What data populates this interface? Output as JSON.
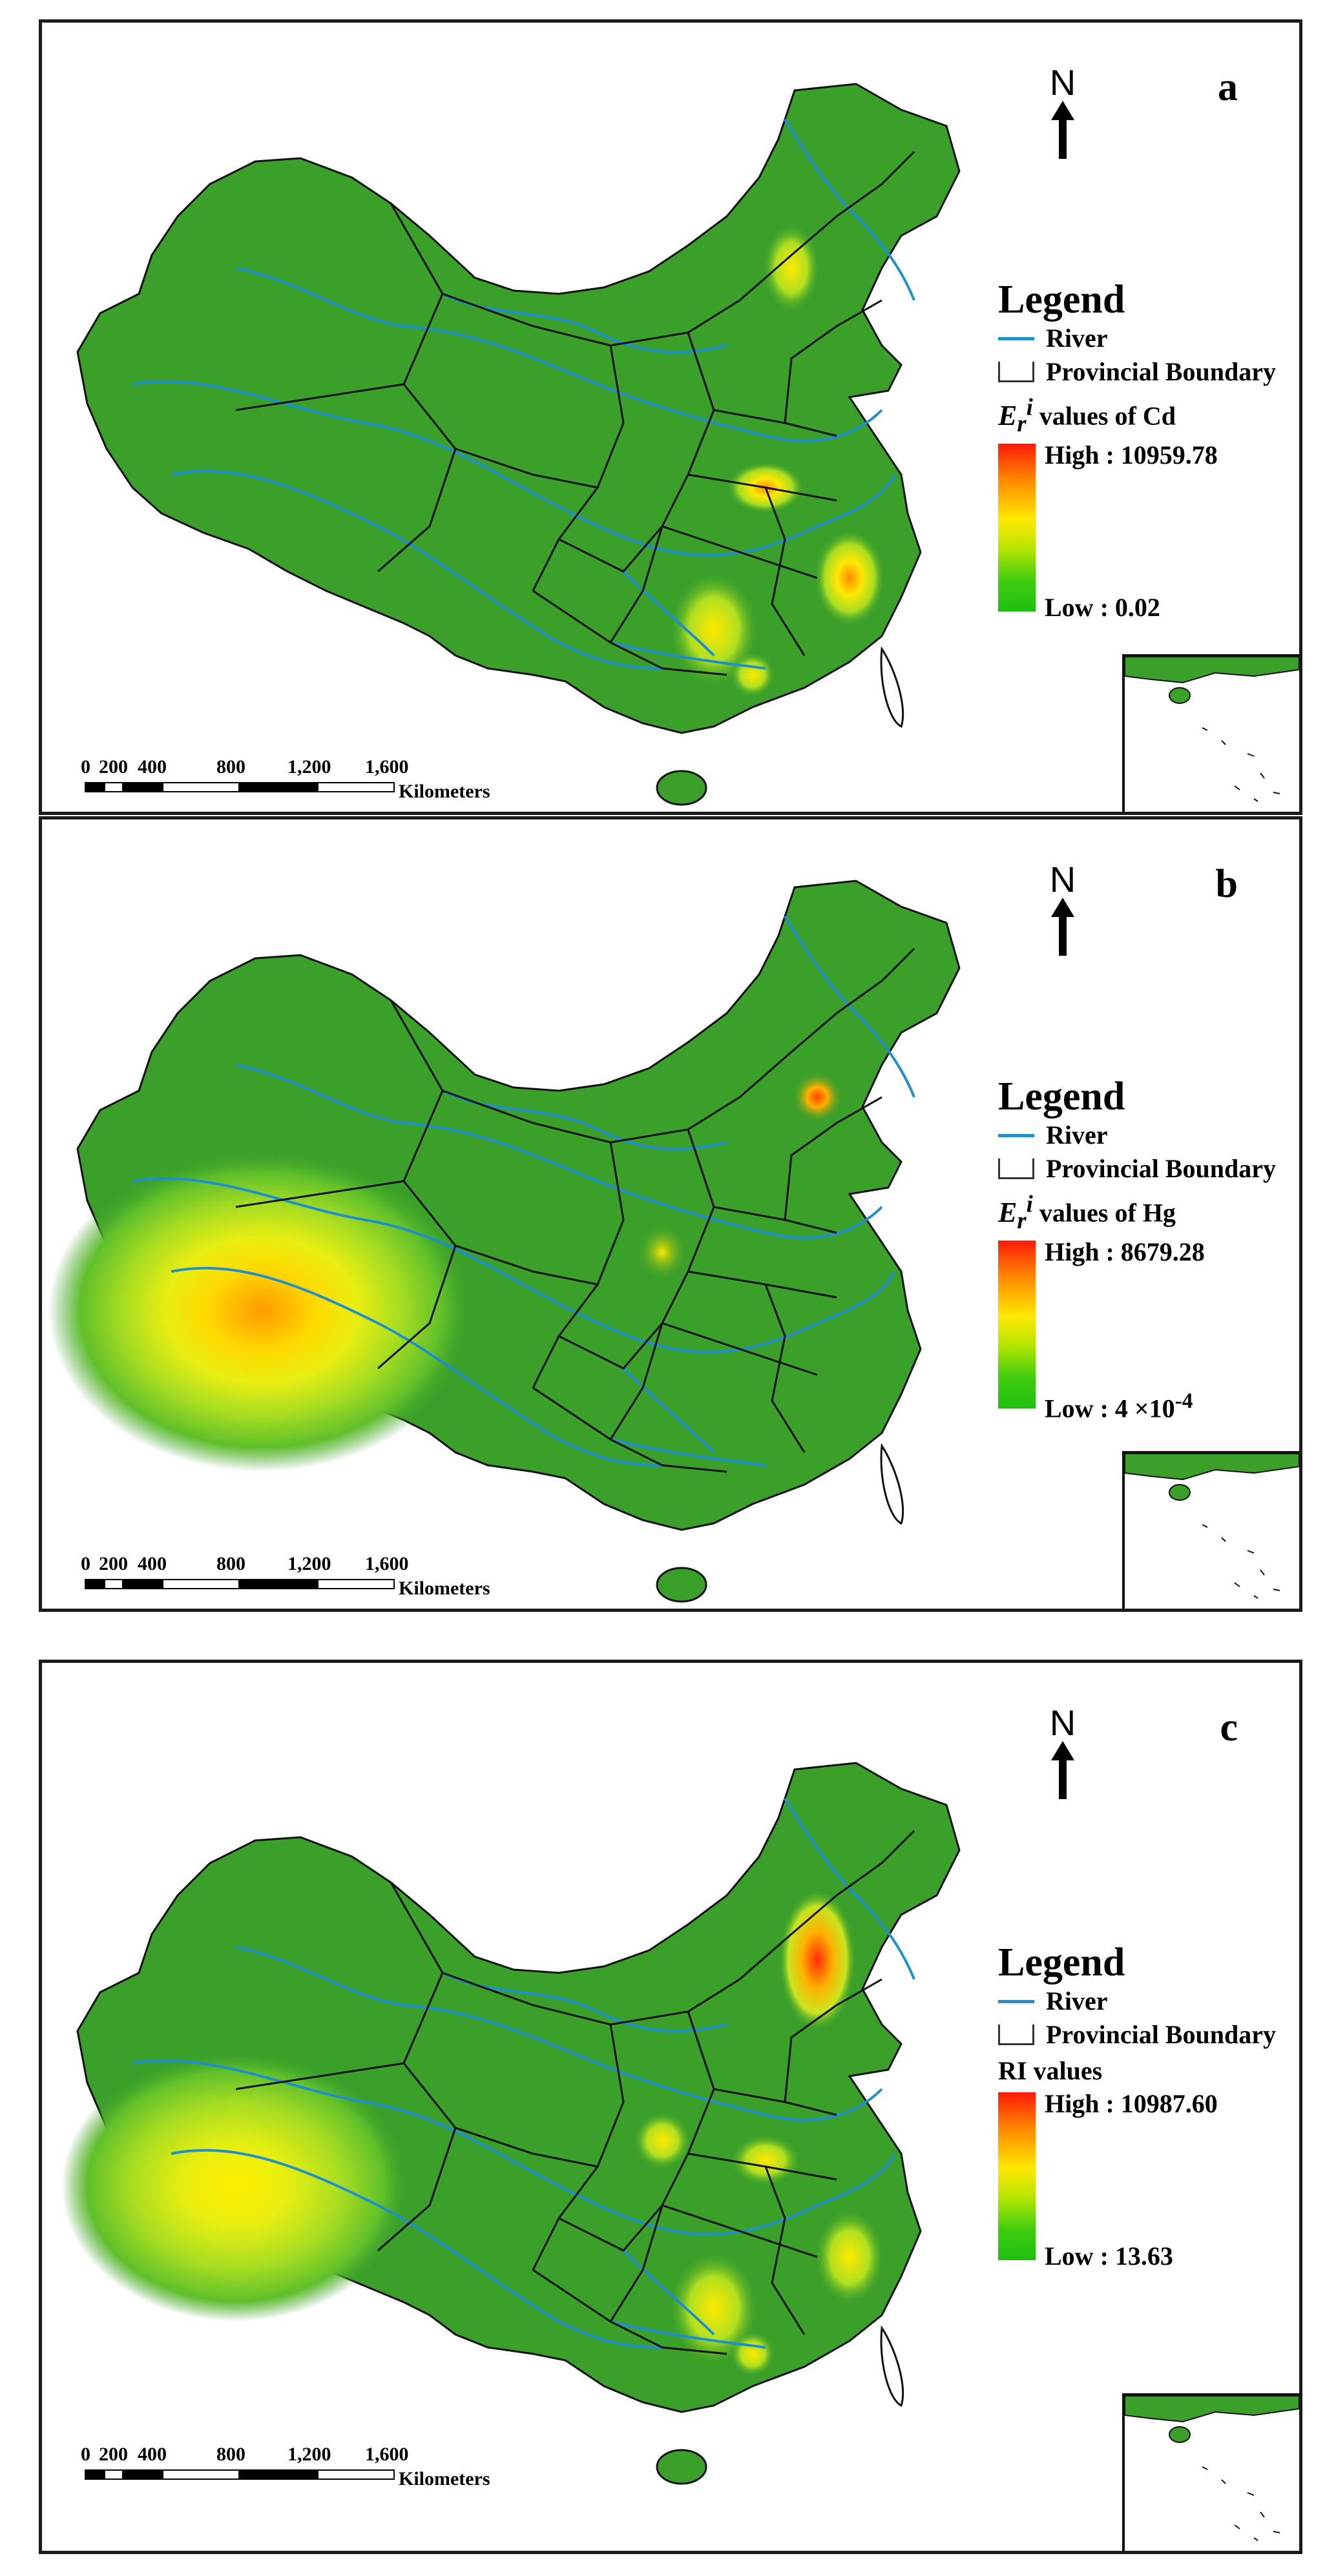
{
  "panels": [
    {
      "letter": "a",
      "north": "N",
      "legend_title": "Legend",
      "legend_river": "River",
      "legend_boundary": "Provincial Boundary",
      "var_symbol_base": "E",
      "var_symbol_sub": "r",
      "var_symbol_sup": "i",
      "var_rest": " values of Cd",
      "high_label": "High : 10959.78",
      "low_label": "Low : 0.02"
    },
    {
      "letter": "b",
      "north": "N",
      "legend_title": "Legend",
      "legend_river": "River",
      "legend_boundary": "Provincial Boundary",
      "var_symbol_base": "E",
      "var_symbol_sub": "r",
      "var_symbol_sup": "i",
      "var_rest": " values of Hg",
      "high_label": "High : 8679.28",
      "low_label": "Low : 4 ×10",
      "low_exp": "-4"
    },
    {
      "letter": "c",
      "north": "N",
      "legend_title": "Legend",
      "legend_river": "River",
      "legend_boundary": "Provincial Boundary",
      "var_title": "RI values",
      "high_label": "High : 10987.60",
      "low_label": "Low : 13.63"
    }
  ],
  "scale": {
    "ticks": [
      "0",
      "200",
      "400",
      "800",
      "1,200",
      "1,600"
    ],
    "unit": "Kilometers"
  },
  "colors": {
    "base_green": "#3aa02a",
    "river": "#1e90d0",
    "boundary": "#1a1a1a",
    "hotspot_high": "#ff1a0a",
    "hotspot_mid": "#ffe800"
  }
}
